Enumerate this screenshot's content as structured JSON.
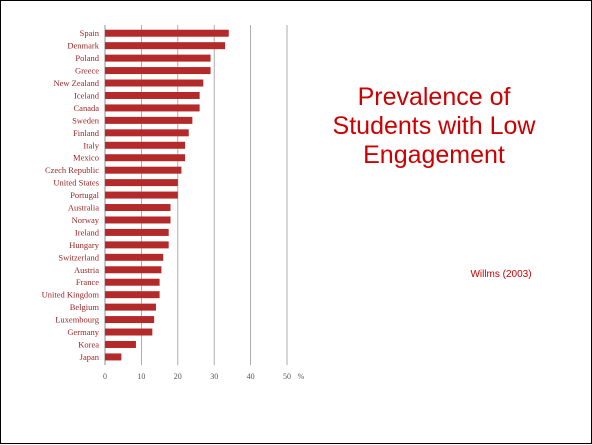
{
  "slide": {
    "title": "Prevalence of Students with Low Engagement",
    "source": "Willms (2003)"
  },
  "colors": {
    "bar": "#b42a2a",
    "label": "#9b1f1f",
    "text": "#cc0000",
    "grid": "#999999"
  },
  "chart_data": {
    "type": "bar",
    "orientation": "horizontal",
    "categories": [
      "Spain",
      "Denmark",
      "Poland",
      "Greece",
      "New Zealand",
      "Iceland",
      "Canada",
      "Sweden",
      "Finland",
      "Italy",
      "Mexico",
      "Czech Republic",
      "United States",
      "Portugal",
      "Australia",
      "Norway",
      "Ireland",
      "Hungary",
      "Switzerland",
      "Austria",
      "France",
      "United Kingdom",
      "Belgium",
      "Luxembourg",
      "Germany",
      "Korea",
      "Japan"
    ],
    "values": [
      34,
      33,
      29,
      29,
      27,
      26,
      26,
      24,
      23,
      22,
      22,
      21,
      20,
      20,
      18,
      18,
      17.5,
      17.5,
      16,
      15.5,
      15,
      15,
      14,
      13.5,
      13,
      8.5,
      4.5
    ],
    "xlim": [
      0,
      50
    ],
    "xticks": [
      0,
      10,
      20,
      30,
      40,
      50
    ],
    "xunit": "%",
    "grid": "vertical"
  }
}
